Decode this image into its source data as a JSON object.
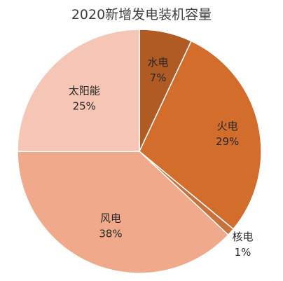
{
  "chart_data": {
    "type": "pie",
    "title": "2020新增发电装机容量",
    "slices": [
      {
        "name": "水电",
        "value": 7,
        "label": "7%",
        "color": "#b05a24"
      },
      {
        "name": "火电",
        "value": 29,
        "label": "29%",
        "color": "#d26d2c"
      },
      {
        "name": "核电",
        "value": 1,
        "label": "1%",
        "color": "#c9713a"
      },
      {
        "name": "风电",
        "value": 38,
        "label": "38%",
        "color": "#f0a98a"
      },
      {
        "name": "太阳能",
        "value": 25,
        "label": "25%",
        "color": "#f5c6b5"
      }
    ],
    "legend": "none"
  }
}
